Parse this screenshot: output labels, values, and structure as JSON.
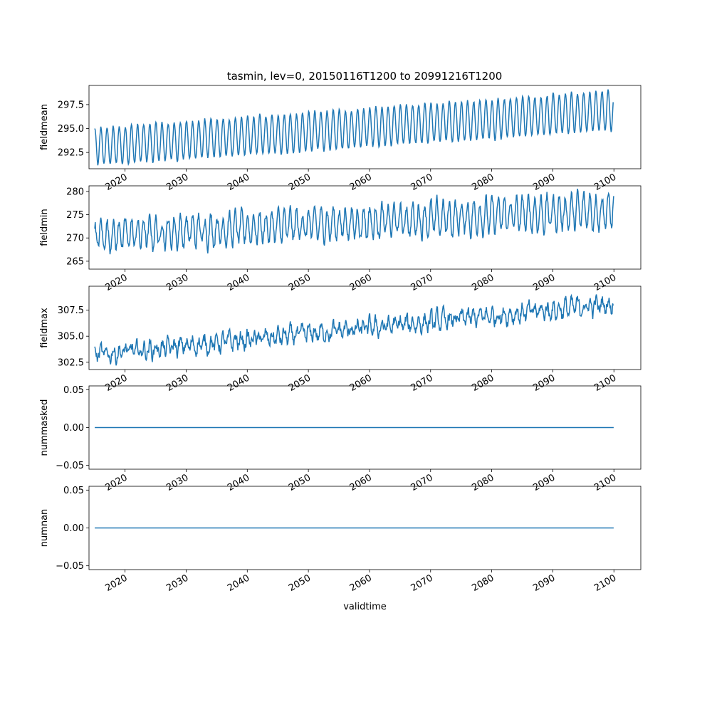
{
  "title": "tasmin, lev=0, 20150116T1200 to 20991216T1200",
  "x_tick_labels": [
    "2020",
    "2030",
    "2040",
    "2050",
    "2060",
    "2070",
    "2080",
    "2090",
    "2100"
  ],
  "colors": {
    "line": "#1f77b4",
    "axes": "#000000",
    "background": "#ffffff"
  },
  "chart_data": [
    {
      "type": "line",
      "ylabel": "fieldmean",
      "xlabel": "",
      "x_range": [
        "2015-01-16",
        "2099-12-16"
      ],
      "xlim": [
        2014.1,
        2104.4
      ],
      "ylim": [
        290.8,
        299.5
      ],
      "y_ticks": [
        292.5,
        295.0,
        297.5
      ],
      "y_tick_labels": [
        "292.5",
        "295.0",
        "297.5"
      ],
      "grid": false,
      "generator": {
        "start_year": 2015.04,
        "end_year": 2099.96,
        "monthly": true,
        "trend_start": 293.1,
        "trend_end": 296.9,
        "amp_start": 1.95,
        "amp_end": 2.1,
        "noise": 0.15,
        "first_value": 295.0,
        "last_value": 297.7
      }
    },
    {
      "type": "line",
      "ylabel": "fieldmin",
      "xlabel": "",
      "x_range": [
        "2015-01-16",
        "2099-12-16"
      ],
      "xlim": [
        2014.1,
        2104.4
      ],
      "ylim": [
        263.3,
        281.2
      ],
      "y_ticks": [
        265,
        270,
        275,
        280
      ],
      "y_tick_labels": [
        "265",
        "270",
        "275",
        "280"
      ],
      "grid": false,
      "generator": {
        "start_year": 2015.04,
        "end_year": 2099.96,
        "monthly": true,
        "trend_start": 270.5,
        "trend_end": 276.0,
        "amp_start": 3.0,
        "amp_end": 3.6,
        "noise": 1.1,
        "first_value": 272.0,
        "last_value": 279.0
      }
    },
    {
      "type": "line",
      "ylabel": "fieldmax",
      "xlabel": "",
      "x_range": [
        "2015-01-16",
        "2099-12-16"
      ],
      "xlim": [
        2014.1,
        2104.4
      ],
      "ylim": [
        301.8,
        309.8
      ],
      "y_ticks": [
        302.5,
        305.0,
        307.5
      ],
      "y_tick_labels": [
        "302.5",
        "305.0",
        "307.5"
      ],
      "grid": false,
      "generator": {
        "start_year": 2015.04,
        "end_year": 2099.96,
        "monthly": true,
        "trend_start": 303.2,
        "trend_end": 308.1,
        "amp_start": 0.5,
        "amp_end": 0.6,
        "noise": 0.55,
        "first_value": 304.0,
        "last_value": 308.0
      }
    },
    {
      "type": "line",
      "ylabel": "nummasked",
      "xlabel": "",
      "x_range": [
        "2015-01-16",
        "2099-12-16"
      ],
      "xlim": [
        2014.1,
        2104.4
      ],
      "ylim": [
        -0.055,
        0.055
      ],
      "y_ticks": [
        -0.05,
        0.0,
        0.05
      ],
      "y_tick_labels": [
        "−0.05",
        "0.00",
        "0.05"
      ],
      "grid": false,
      "constant_value": 0.0
    },
    {
      "type": "line",
      "ylabel": "numnan",
      "xlabel": "validtime",
      "x_range": [
        "2015-01-16",
        "2099-12-16"
      ],
      "xlim": [
        2014.1,
        2104.4
      ],
      "ylim": [
        -0.055,
        0.055
      ],
      "y_ticks": [
        -0.05,
        0.0,
        0.05
      ],
      "y_tick_labels": [
        "−0.05",
        "0.00",
        "0.05"
      ],
      "grid": false,
      "constant_value": 0.0
    }
  ]
}
